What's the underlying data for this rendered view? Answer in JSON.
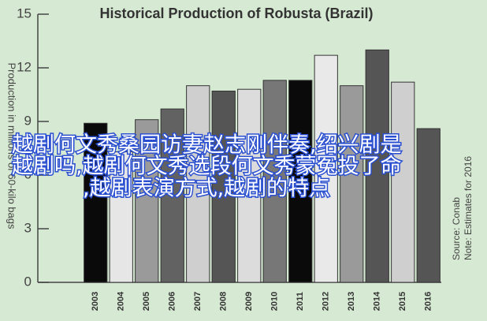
{
  "chart_data": {
    "type": "bar",
    "title": "Historical Production of Robusta (Brazil)",
    "y_label": "Production in millions of 60-kilo bags",
    "source": "Source: Conab",
    "note": "Note: Estimates for 2016",
    "categories": [
      "2003",
      "2004",
      "2005",
      "2006",
      "2007",
      "2008",
      "2009",
      "2010",
      "2011",
      "2012",
      "2013",
      "2014",
      "2015",
      "2016"
    ],
    "values": [
      8.9,
      7.3,
      9.1,
      9.7,
      11.0,
      10.7,
      10.8,
      11.3,
      11.3,
      12.7,
      11.0,
      13.0,
      11.2,
      8.6
    ],
    "colors": [
      "#0a0a0a",
      "#e6e6e6",
      "#9a9a9a",
      "#626262",
      "#cfcfcf",
      "#555555",
      "#dcdcdc",
      "#777777",
      "#0a0a0a",
      "#e9e9e9",
      "#9a9a9a",
      "#555555",
      "#cfcfcf",
      "#555555"
    ],
    "ylim": [
      0,
      15
    ],
    "yticks": [
      0,
      3,
      6,
      9,
      12,
      15
    ],
    "grid": false
  },
  "overlay_text": [
    "越剧何文秀桑园访妻赵志刚伴奏,绍兴剧是",
    "越剧吗,越剧何文秀选段何文秀蒙冤投了命",
    ",越剧表演方式,越剧的特点"
  ]
}
